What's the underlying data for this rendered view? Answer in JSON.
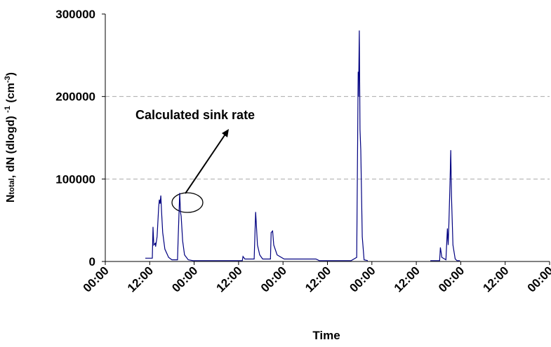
{
  "chart_data": {
    "type": "line",
    "x_label": "Time",
    "y_label_parts": [
      "N",
      "total",
      ", dN (dlogd) ",
      "-1",
      " (cm",
      "-3",
      ")"
    ],
    "annotation": "Calculated sink rate",
    "xlim": [
      0,
      120
    ],
    "xticks": [
      {
        "value": 0,
        "label": "00:00"
      },
      {
        "value": 12,
        "label": "12:00"
      },
      {
        "value": 24,
        "label": "00:00"
      },
      {
        "value": 36,
        "label": "12:00"
      },
      {
        "value": 48,
        "label": "00:00"
      },
      {
        "value": 60,
        "label": "12:00"
      },
      {
        "value": 72,
        "label": "00:00"
      },
      {
        "value": 84,
        "label": "12:00"
      },
      {
        "value": 96,
        "label": "00:00"
      },
      {
        "value": 108,
        "label": "12:00"
      },
      {
        "value": 120,
        "label": "00:00"
      }
    ],
    "ylim": [
      0,
      300000
    ],
    "yticks": [
      0,
      100000,
      200000,
      300000
    ],
    "grid": true,
    "series": [
      {
        "name": "Ntotal",
        "color": "#000080",
        "x": [
          10.8,
          12.7,
          12.9,
          13.1,
          13.5,
          13.6,
          14.0,
          14.4,
          14.6,
          14.8,
          15.0,
          15.2,
          15.5,
          16.1,
          17.1,
          18.0,
          19.5,
          19.7,
          20.1,
          20.3,
          20.5,
          20.9,
          21.4,
          22.4,
          23.7,
          37.0,
          37.2,
          37.7,
          40.2,
          40.6,
          40.8,
          41.1,
          41.7,
          42.5,
          44.6,
          44.8,
          45.2,
          45.5,
          46.4,
          48.3,
          56.9,
          57.8,
          66.4,
          67.9,
          68.3,
          68.4,
          68.6,
          68.8,
          69.0,
          69.4,
          69.9,
          70.9,
          80.0,
          87.8,
          90.3,
          90.5,
          90.9,
          92.0,
          92.4,
          92.6,
          92.8,
          93.1,
          93.3,
          93.5,
          93.9,
          94.5,
          95.0,
          95.8
        ],
        "values": [
          4000,
          4000,
          42000,
          20000,
          22000,
          18000,
          30000,
          65000,
          75000,
          70000,
          80000,
          60000,
          35000,
          15000,
          5000,
          2000,
          2000,
          30000,
          83000,
          60000,
          55000,
          25000,
          8000,
          2000,
          1000,
          1000,
          6000,
          3000,
          3000,
          60000,
          45000,
          20000,
          8000,
          3000,
          3000,
          35000,
          37000,
          20000,
          8000,
          3000,
          3000,
          1000,
          1000,
          5000,
          230000,
          200000,
          280000,
          160000,
          135000,
          30000,
          2000,
          1000,
          null,
          1000,
          1000,
          17000,
          5000,
          2000,
          40000,
          20000,
          45000,
          95000,
          135000,
          80000,
          20000,
          3000,
          1000,
          1000
        ]
      }
    ]
  }
}
